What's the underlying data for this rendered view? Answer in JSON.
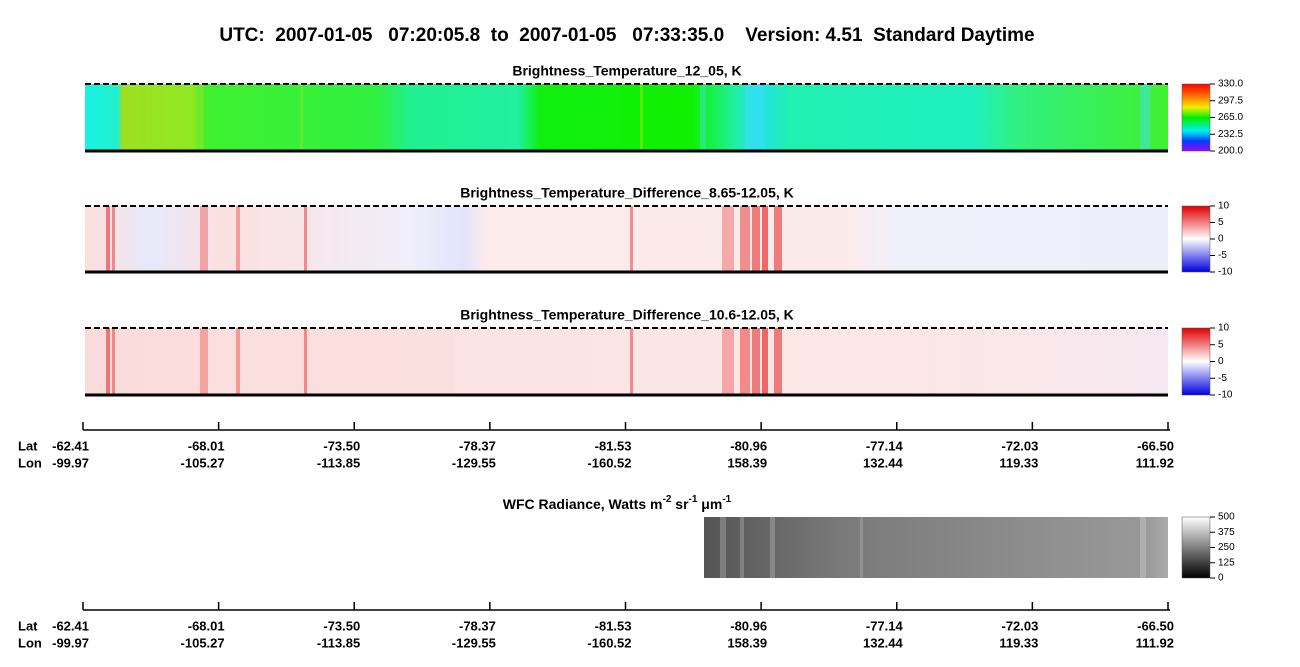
{
  "header": {
    "title": "UTC:  2007-01-05   07:20:05.8  to  2007-01-05   07:33:35.0    Version: 4.51  Standard Daytime"
  },
  "panels": [
    {
      "title": "Brightness_Temperature_12_05, K",
      "colorbar": [
        "330.0",
        "297.5",
        "265.0",
        "232.5",
        "200.0"
      ]
    },
    {
      "title": "Brightness_Temperature_Difference_8.65-12.05, K",
      "colorbar": [
        "10",
        "5",
        "0",
        "-5",
        "-10"
      ]
    },
    {
      "title": "Brightness_Temperature_Difference_10.6-12.05, K",
      "colorbar": [
        "10",
        "5",
        "0",
        "-5",
        "-10"
      ]
    }
  ],
  "wfc": {
    "title": [
      "WFC Radiance, Watts m",
      "-2",
      " sr",
      "-1",
      " μm",
      "-1"
    ],
    "colorbar": [
      "500",
      "375",
      "250",
      "125",
      "0"
    ]
  },
  "axes": [
    {
      "lat_label": "Lat",
      "lon_label": "Lon",
      "lat": [
        "-62.41",
        "-68.01",
        "-73.50",
        "-78.37",
        "-81.53",
        "-80.96",
        "-77.14",
        "-72.03",
        "-66.50"
      ],
      "lon": [
        "-99.97",
        "-105.27",
        "-113.85",
        "-129.55",
        "-160.52",
        "158.39",
        "132.44",
        "119.33",
        "111.92"
      ]
    },
    {
      "lat_label": "Lat",
      "lon_label": "Lon",
      "lat": [
        "-62.41",
        "-68.01",
        "-73.50",
        "-78.37",
        "-81.53",
        "-80.96",
        "-77.14",
        "-72.03",
        "-66.50"
      ],
      "lon": [
        "-99.97",
        "-105.27",
        "-113.85",
        "-129.55",
        "-160.52",
        "158.39",
        "132.44",
        "119.33",
        "111.92"
      ]
    }
  ]
}
